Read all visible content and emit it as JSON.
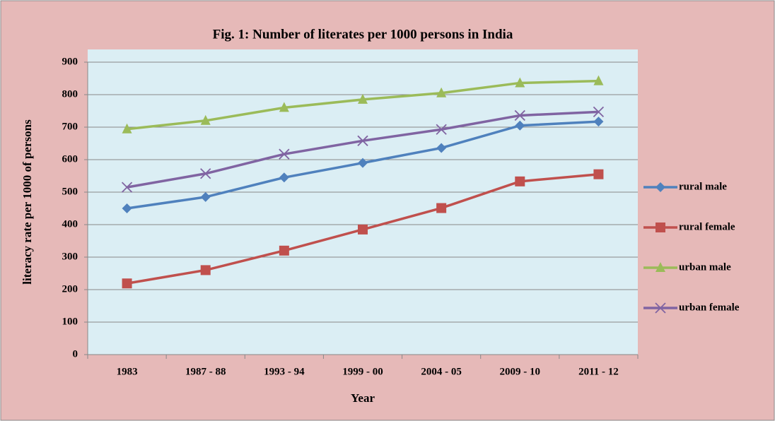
{
  "chart_data": {
    "type": "line",
    "title": "Fig. 1: Number of literates per 1000 persons in India",
    "x_label": "Year",
    "y_label": "literacy rate per 1000 of persons",
    "categories": [
      "1983",
      "1987 - 88",
      "1993 - 94",
      "1999 - 00",
      "2004 - 05",
      "2009 - 10",
      "2011 - 12"
    ],
    "series": [
      {
        "name": "rural male",
        "color": "#4f81bd",
        "marker": "diamond",
        "values": [
          450,
          485,
          545,
          590,
          636,
          705,
          717
        ]
      },
      {
        "name": "rural female",
        "color": "#c0504d",
        "marker": "square",
        "values": [
          219,
          260,
          320,
          385,
          451,
          533,
          555
        ]
      },
      {
        "name": "urban male",
        "color": "#9bbb59",
        "marker": "triangle",
        "values": [
          694,
          720,
          760,
          785,
          805,
          836,
          842
        ]
      },
      {
        "name": "urban female",
        "color": "#8064a2",
        "marker": "x",
        "values": [
          515,
          557,
          617,
          658,
          693,
          736,
          747
        ]
      }
    ],
    "ylim": [
      0,
      900
    ],
    "yticks": [
      0,
      100,
      200,
      300,
      400,
      500,
      600,
      700,
      800,
      900
    ],
    "grid": true,
    "legend": "right"
  }
}
